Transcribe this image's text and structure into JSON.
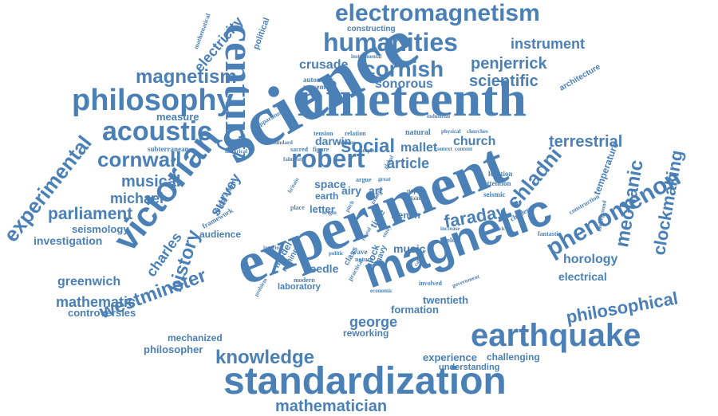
{
  "colors": {
    "word": "#4a80b6",
    "background": "#ffffff"
  },
  "words": [
    "science",
    "experiment",
    "nineteenth",
    "century",
    "magnetic",
    "standardization",
    "victorian",
    "earthquake",
    "humanities",
    "electromagnetism",
    "philosophy",
    "acoustic",
    "robert",
    "phenomenon",
    "mathematician",
    "cornish",
    "cornwall",
    "magnetism",
    "westminster",
    "history",
    "experimental",
    "knowledge",
    "philosophical",
    "parliament",
    "chladni",
    "clockmaking",
    "mechanic",
    "terrestrial",
    "faraday",
    "social",
    "scientific",
    "musical",
    "michael",
    "charles",
    "mathematic",
    "penjerrick",
    "crusade",
    "instrument",
    "sonorous",
    "greenwich",
    "george",
    "survey",
    "electricity",
    "article",
    "horology",
    "mallet",
    "church",
    "darwin",
    "electrical",
    "seismology",
    "investigation",
    "philosopher",
    "controversies",
    "music",
    "formation",
    "twentieth",
    "experience",
    "challenging",
    "reworking",
    "understanding",
    "mechanized",
    "measure",
    "audience",
    "space",
    "airy",
    "art",
    "earth",
    "letter",
    "needle",
    "laboratory",
    "temperature",
    "architecture",
    "political",
    "mathematical",
    "constructing",
    "instrumental",
    "automatic",
    "movement",
    "industrial",
    "framework",
    "integration",
    "subterranean",
    "historical",
    "falmouth",
    "apparatus",
    "standard",
    "sacred",
    "figure",
    "tension",
    "relation",
    "natural",
    "physical",
    "churches",
    "location",
    "attention",
    "seismic",
    "challenge",
    "construction",
    "fantastic",
    "underground",
    "french",
    "clock",
    "time",
    "navy",
    "model",
    "mining",
    "class",
    "practical",
    "modern",
    "wave",
    "nature",
    "device",
    "explore",
    "increase",
    "involved",
    "catholic",
    "government",
    "economic",
    "problem",
    "interior",
    "politic",
    "place",
    "britain",
    "argue",
    "great",
    "pope",
    "study",
    "reveal",
    "origin",
    "pitch",
    "clay",
    "present",
    "global",
    "claim",
    "content",
    "scheme",
    "complex",
    "context"
  ]
}
